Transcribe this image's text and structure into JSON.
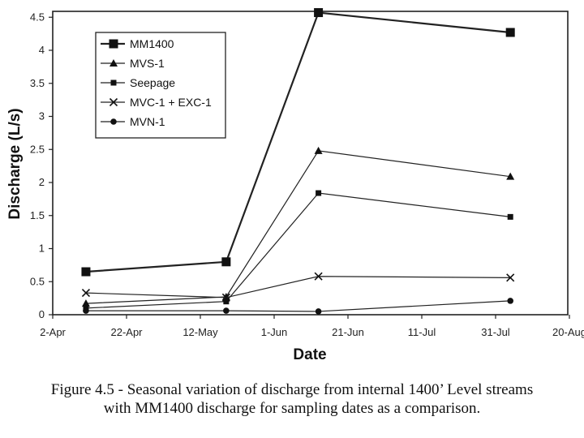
{
  "chart_data": {
    "type": "line",
    "xlabel": "Date",
    "ylabel": "Discharge (L/s)",
    "x_tick_labels": [
      "2-Apr",
      "22-Apr",
      "12-May",
      "1-Jun",
      "21-Jun",
      "11-Jul",
      "31-Jul",
      "20-Aug"
    ],
    "x_tick_days": [
      0,
      20,
      40,
      60,
      80,
      100,
      120,
      140
    ],
    "x_axis_origin_date": "2-Apr",
    "xlim": [
      0,
      140
    ],
    "y_ticks": [
      0,
      0.5,
      1,
      1.5,
      2,
      2.5,
      3,
      3.5,
      4,
      4.5
    ],
    "y_tick_labels": [
      "0",
      "0.5",
      "1",
      "1.5",
      "2",
      "2.5",
      "3",
      "3.5",
      "4",
      "4.5"
    ],
    "ylim": [
      0,
      4.6
    ],
    "grid": false,
    "legend_position": "top-left",
    "series": [
      {
        "name": "MM1400",
        "marker": "square-large",
        "x": [
          9,
          47,
          72,
          124
        ],
        "y": [
          0.65,
          0.8,
          4.57,
          4.27
        ]
      },
      {
        "name": "MVS-1",
        "marker": "triangle",
        "x": [
          9,
          47,
          72,
          124
        ],
        "y": [
          0.17,
          0.27,
          2.48,
          2.09
        ]
      },
      {
        "name": "Seepage",
        "marker": "square-small",
        "x": [
          9,
          47,
          72,
          124
        ],
        "y": [
          0.1,
          0.2,
          1.84,
          1.48
        ]
      },
      {
        "name": "MVC-1 + EXC-1",
        "marker": "x",
        "x": [
          9,
          47,
          72,
          124
        ],
        "y": [
          0.33,
          0.26,
          0.58,
          0.56
        ]
      },
      {
        "name": "MVN-1",
        "marker": "circle",
        "x": [
          9,
          47,
          72,
          124
        ],
        "y": [
          0.06,
          0.06,
          0.05,
          0.21
        ]
      }
    ]
  },
  "caption": {
    "line1": "Figure 4.5 - Seasonal variation of discharge from internal 1400’ Level streams",
    "line2": "with MM1400 discharge for sampling dates as a comparison."
  }
}
